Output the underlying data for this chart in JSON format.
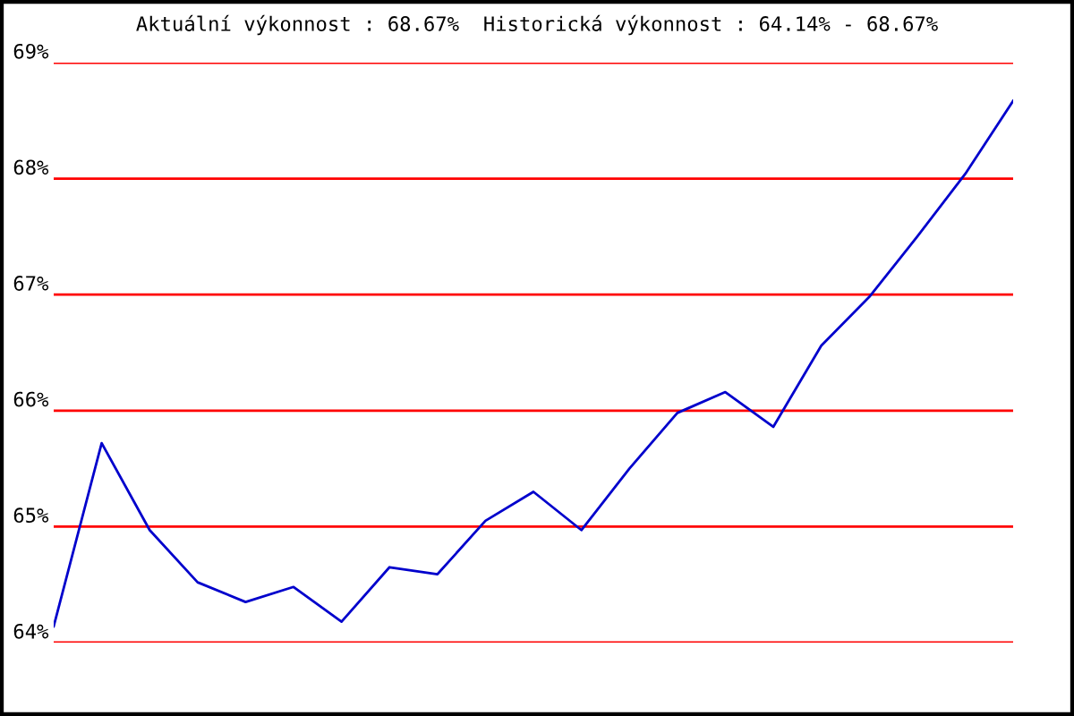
{
  "chart_data": {
    "type": "line",
    "title": "Aktuální výkonnost : 68.67%  Historická výkonnost : 64.14% - 68.67%",
    "categories": [
      null,
      null,
      null,
      null,
      null,
      null,
      null,
      null,
      null,
      null,
      null,
      null,
      null,
      null,
      null,
      null,
      null,
      null,
      null,
      null,
      null
    ],
    "series": [
      {
        "color": "#0000cc",
        "values": [
          64.14,
          65.72,
          64.97,
          64.52,
          64.35,
          64.48,
          64.18,
          64.65,
          64.59,
          65.05,
          65.3,
          64.97,
          65.5,
          65.98,
          66.16,
          65.86,
          66.56,
          66.98,
          67.5,
          68.04,
          68.67
        ]
      }
    ],
    "ylim": [
      64,
      69
    ],
    "yticks": [
      {
        "value": 64,
        "label": "64%"
      },
      {
        "value": 65,
        "label": "65%"
      },
      {
        "value": 66,
        "label": "66%"
      },
      {
        "value": 67,
        "label": "67%"
      },
      {
        "value": 68,
        "label": "68%"
      },
      {
        "value": 69,
        "label": "69%"
      }
    ],
    "grid": "y",
    "tick_labels": "y",
    "legend": false,
    "marker": "none",
    "line_style": "solid"
  }
}
